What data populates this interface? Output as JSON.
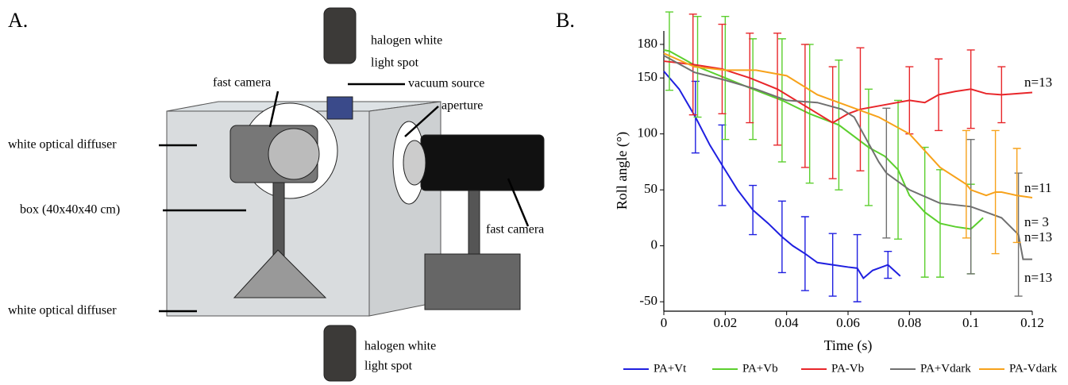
{
  "panel_labels": [
    "A.",
    "B."
  ],
  "panel_a": {
    "labels": [
      "halogen white",
      "light spot",
      "fast camera",
      "vacuum source",
      "aperture",
      "white optical diffuser",
      "box (40x40x40 cm)",
      "fast camera",
      "white optical diffuser",
      "halogen white",
      "light spot"
    ]
  },
  "chart_data": {
    "type": "line",
    "xlabel": "Time (s)",
    "ylabel": "Roll angle (°)",
    "xlim": [
      0,
      0.12
    ],
    "ylim": [
      -57,
      192
    ],
    "xticks": [
      0,
      0.02,
      0.04,
      0.06,
      0.08,
      0.1,
      0.12
    ],
    "yticks": [
      -50,
      0,
      50,
      100,
      150,
      180
    ],
    "series": [
      {
        "name": "PA+Vt",
        "color": "#1f1fe0",
        "annotation": "n=13",
        "x": [
          0,
          0.005,
          0.0103,
          0.015,
          0.019,
          0.024,
          0.029,
          0.034,
          0.0385,
          0.042,
          0.046,
          0.05,
          0.055,
          0.06,
          0.063,
          0.065,
          0.068,
          0.073,
          0.077
        ],
        "values": [
          156,
          140,
          115,
          90,
          72,
          50,
          32,
          20,
          8,
          0,
          -7,
          -15,
          -17,
          -19,
          -20,
          -29,
          -22,
          -17,
          -27
        ],
        "errors": [
          null,
          null,
          32,
          null,
          36,
          null,
          22,
          null,
          32,
          null,
          33,
          null,
          28,
          null,
          30,
          null,
          null,
          12,
          null
        ]
      },
      {
        "name": "PA+Vb",
        "color": "#5ccf2e",
        "annotation": "n=13",
        "x": [
          0,
          0.0018,
          0.011,
          0.02,
          0.029,
          0.0385,
          0.0475,
          0.057,
          0.0667,
          0.072,
          0.0763,
          0.08,
          0.085,
          0.09,
          0.095,
          0.1,
          0.102,
          0.104
        ],
        "values": [
          175,
          174,
          160,
          150,
          140,
          130,
          118,
          108,
          88,
          80,
          68,
          45,
          30,
          20,
          17,
          15,
          20,
          25
        ],
        "errors": [
          null,
          35,
          45,
          55,
          45,
          55,
          62,
          58,
          52,
          null,
          62,
          null,
          58,
          48,
          null,
          40,
          null,
          null
        ]
      },
      {
        "name": "PA-Vb",
        "color": "#e8262a",
        "annotation": "n=13",
        "x": [
          0,
          0.0095,
          0.019,
          0.028,
          0.037,
          0.046,
          0.055,
          0.06,
          0.064,
          0.07,
          0.08,
          0.085,
          0.0895,
          0.095,
          0.1,
          0.105,
          0.11,
          0.12
        ],
        "values": [
          165,
          162,
          158,
          150,
          140,
          125,
          110,
          118,
          122,
          125,
          130,
          128,
          135,
          138,
          140,
          136,
          135,
          137
        ],
        "errors": [
          null,
          45,
          40,
          40,
          50,
          55,
          50,
          null,
          55,
          null,
          30,
          null,
          32,
          null,
          35,
          null,
          25,
          null
        ]
      },
      {
        "name": "PA+Vdark",
        "color": "#707070",
        "annotation": "n= 3",
        "x": [
          0,
          0.01,
          0.02,
          0.03,
          0.04,
          0.05,
          0.058,
          0.062,
          0.065,
          0.07,
          0.0725,
          0.08,
          0.09,
          0.1,
          0.105,
          0.11,
          0.1155,
          0.117,
          0.12
        ],
        "values": [
          170,
          155,
          148,
          140,
          130,
          128,
          122,
          115,
          100,
          75,
          65,
          50,
          38,
          35,
          30,
          25,
          10,
          -12,
          -12
        ],
        "errors": [
          null,
          null,
          null,
          null,
          null,
          null,
          null,
          null,
          null,
          null,
          58,
          null,
          null,
          60,
          null,
          null,
          55,
          null,
          null
        ]
      },
      {
        "name": "PA-Vdark",
        "color": "#f7a21b",
        "annotation": "n=11",
        "x": [
          0,
          0.01,
          0.02,
          0.03,
          0.04,
          0.05,
          0.06,
          0.07,
          0.08,
          0.09,
          0.0985,
          0.1,
          0.105,
          0.108,
          0.11,
          0.115,
          0.12
        ],
        "values": [
          172,
          160,
          157,
          157,
          152,
          135,
          125,
          115,
          100,
          70,
          55,
          50,
          45,
          48,
          48,
          45,
          43
        ],
        "errors": [
          null,
          null,
          null,
          null,
          null,
          null,
          null,
          null,
          null,
          null,
          48,
          null,
          null,
          55,
          null,
          42,
          null
        ]
      }
    ]
  }
}
